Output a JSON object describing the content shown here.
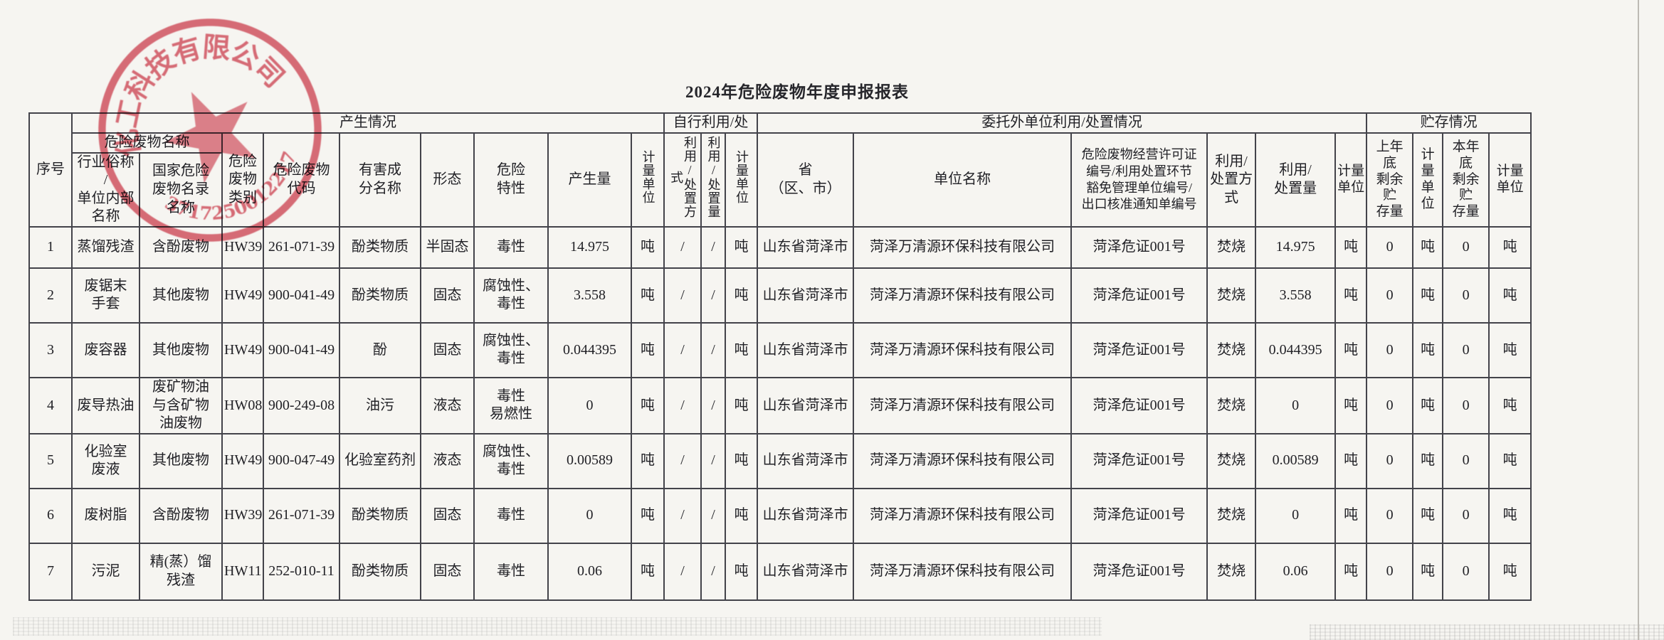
{
  "title": "2024年危险废物年度申报报表",
  "stamp": {
    "arc_text": "化工科技有限公司",
    "serial_number": "3717250012217",
    "color": "#d64f5f"
  },
  "table": {
    "headers": {
      "serial": "序号",
      "generation_group": "产生情况",
      "self_group": "自行利用/处",
      "entrusted_group": "委托外单位利用/处置情况",
      "storage_group": "贮存情况",
      "waste_name_group": "危险废物名称",
      "industry_name": "行业俗称\n/\n单位内部\n名称",
      "catalog_name": "国家危险\n废物名录\n名称",
      "category": "危险\n废物\n类别",
      "code": "危险废物\n代码",
      "harmful_component": "有害成\n分名称",
      "form": "形态",
      "hazard_trait": "危险\n特性",
      "generated_amount": "产生量",
      "unit_vertical": "计量单位",
      "unit_wrapped": "计量\n单位",
      "self_method": "利用/处置方式",
      "self_amount": "利用/处置量",
      "province": "省\n（区、市）",
      "company_name": "单位名称",
      "license": "危险废物经营许可证\n编号/利用处置环节\n豁免管理单位编号/\n出口核准通知单编号",
      "ext_method": "利用/\n处置方\n式",
      "ext_amount": "利用/\n处置量",
      "last_year_storage": "上年\n底\n剩余\n贮\n存量",
      "this_year_storage": "本年\n底\n剩余\n贮\n存量"
    },
    "rows": [
      [
        "1",
        "蒸馏残渣",
        "含酚废物",
        "HW39",
        "261-071-39",
        "酚类物质",
        "半固态",
        "毒性",
        "14.975",
        "吨",
        "/",
        "/",
        "吨",
        "山东省菏泽市",
        "菏泽万清源环保科技有限公司",
        "菏泽危证001号",
        "焚烧",
        "14.975",
        "吨",
        "0",
        "吨",
        "0",
        "吨"
      ],
      [
        "2",
        "废锯末\n手套",
        "其他废物",
        "HW49",
        "900-041-49",
        "酚类物质",
        "固态",
        "腐蚀性、\n毒性",
        "3.558",
        "吨",
        "/",
        "/",
        "吨",
        "山东省菏泽市",
        "菏泽万清源环保科技有限公司",
        "菏泽危证001号",
        "焚烧",
        "3.558",
        "吨",
        "0",
        "吨",
        "0",
        "吨"
      ],
      [
        "3",
        "废容器",
        "其他废物",
        "HW49",
        "900-041-49",
        "酚",
        "固态",
        "腐蚀性、\n毒性",
        "0.044395",
        "吨",
        "/",
        "/",
        "吨",
        "山东省菏泽市",
        "菏泽万清源环保科技有限公司",
        "菏泽危证001号",
        "焚烧",
        "0.044395",
        "吨",
        "0",
        "吨",
        "0",
        "吨"
      ],
      [
        "4",
        "废导热油",
        "废矿物油\n与含矿物\n油废物",
        "HW08",
        "900-249-08",
        "油污",
        "液态",
        "毒性\n易燃性",
        "0",
        "吨",
        "/",
        "/",
        "吨",
        "山东省菏泽市",
        "菏泽万清源环保科技有限公司",
        "菏泽危证001号",
        "焚烧",
        "0",
        "吨",
        "0",
        "吨",
        "0",
        "吨"
      ],
      [
        "5",
        "化验室\n废液",
        "其他废物",
        "HW49",
        "900-047-49",
        "化验室药剂",
        "液态",
        "腐蚀性、\n毒性",
        "0.00589",
        "吨",
        "/",
        "/",
        "吨",
        "山东省菏泽市",
        "菏泽万清源环保科技有限公司",
        "菏泽危证001号",
        "焚烧",
        "0.00589",
        "吨",
        "0",
        "吨",
        "0",
        "吨"
      ],
      [
        "6",
        "废树脂",
        "含酚废物",
        "HW39",
        "261-071-39",
        "酚类物质",
        "固态",
        "毒性",
        "0",
        "吨",
        "/",
        "/",
        "吨",
        "山东省菏泽市",
        "菏泽万清源环保科技有限公司",
        "菏泽危证001号",
        "焚烧",
        "0",
        "吨",
        "0",
        "吨",
        "0",
        "吨"
      ],
      [
        "7",
        "污泥",
        "精(蒸）馏\n残渣",
        "HW11",
        "252-010-11",
        "酚类物质",
        "固态",
        "毒性",
        "0.06",
        "吨",
        "/",
        "/",
        "吨",
        "山东省菏泽市",
        "菏泽万清源环保科技有限公司",
        "菏泽危证001号",
        "焚烧",
        "0.06",
        "吨",
        "0",
        "吨",
        "0",
        "吨"
      ]
    ]
  }
}
